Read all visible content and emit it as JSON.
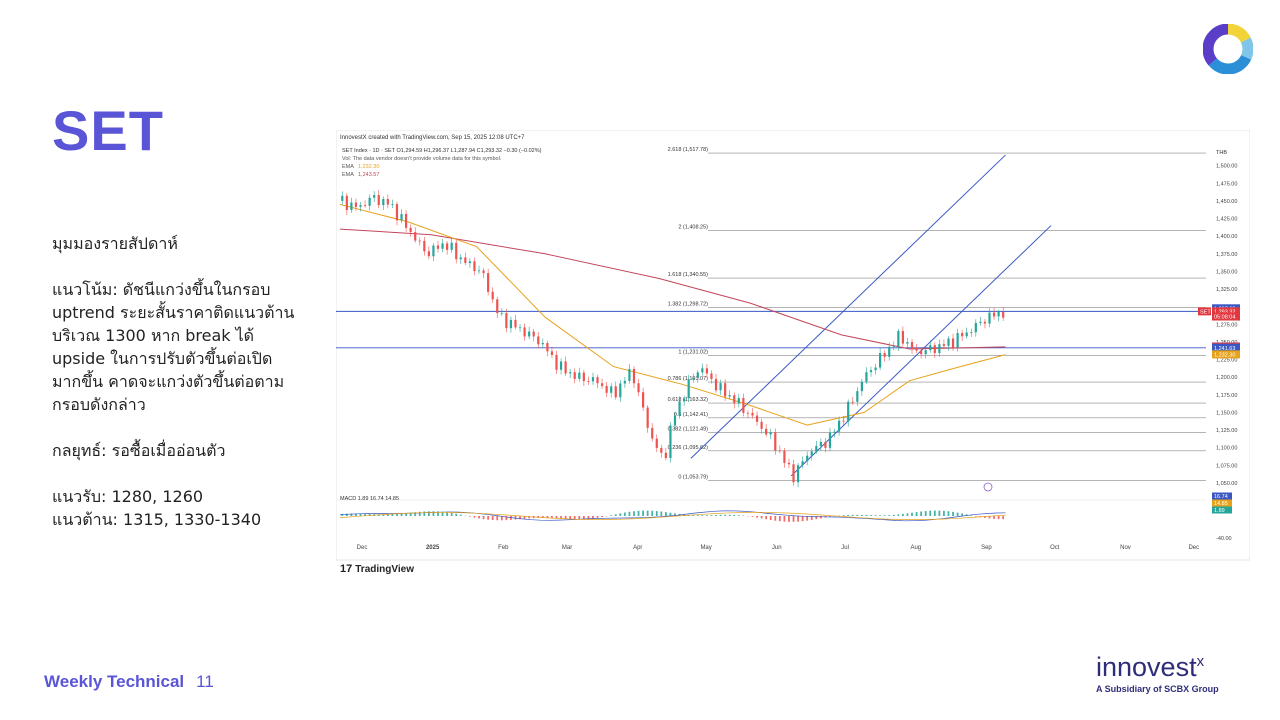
{
  "slide": {
    "title": "SET",
    "footer_label": "Weekly Technical",
    "page_number": "11"
  },
  "commentary": {
    "heading": "มุมมองรายสัปดาห์",
    "trend_lines": [
      "แนวโน้ม: ดัชนีแกว่งขึ้นในกรอบ",
      "uptrend ระยะสั้นราคาติดแนวต้าน",
      "บริเวณ 1300 หาก break ได้",
      "upside ในการปรับตัวขึ้นต่อเปิด",
      "มากขึ้น คาดจะแกว่งตัวขึ้นต่อตาม",
      "กรอบดังกล่าว"
    ],
    "strategy": "กลยุทธ์: รอซื้อเมื่ออ่อนตัว",
    "support": "แนวรับ: 1280, 1260",
    "resistance": "แนวต้าน: 1315, 1330-1340"
  },
  "brand": {
    "name": "innovest",
    "name_suffix": "x",
    "tagline": "A Subsidiary of SCBX Group",
    "tradingview": "TradingView",
    "tv_mark": "17",
    "primary": "#5a55d6",
    "navy": "#2f2d7a"
  },
  "chart_data": {
    "type": "candlestick",
    "header": "InnovestX created with TradingView.com, Sep 15, 2025 12:08 UTC+7",
    "symbol_line": "SET Index · 1D · SET  O1,294.59  H1,296.37  L1,287.94  C1,293.32  −0.30 (−0.02%)",
    "vol_line": "Vol: The data vendor doesn't provide volume data for this symbol.",
    "ema_lines": [
      {
        "label": "EMA",
        "value": "1,232.30",
        "color": "#e6a21a"
      },
      {
        "label": "EMA",
        "value": "1,243.57",
        "color": "#c2465a"
      }
    ],
    "currency": "THB",
    "ylim": [
      1040,
      1525
    ],
    "x_labels": [
      {
        "label": "Dec",
        "day": 0
      },
      {
        "label": "2025",
        "day": 31
      },
      {
        "label": "Feb",
        "day": 62
      },
      {
        "label": "Mar",
        "day": 90
      },
      {
        "label": "Apr",
        "day": 121
      },
      {
        "label": "May",
        "day": 151
      },
      {
        "label": "Jun",
        "day": 182
      },
      {
        "label": "Jul",
        "day": 212
      },
      {
        "label": "Aug",
        "day": 243
      },
      {
        "label": "Sep",
        "day": 274
      },
      {
        "label": "Oct",
        "day": 304
      },
      {
        "label": "Nov",
        "day": 335
      },
      {
        "label": "Dec",
        "day": 365
      }
    ],
    "y_ticks": [
      "1,500.00",
      "1,475.00",
      "1,450.00",
      "1,425.00",
      "1,400.00",
      "1,375.00",
      "1,350.00",
      "1,325.00",
      "1,275.00",
      "1,250.00",
      "1,225.00",
      "1,200.00",
      "1,175.00",
      "1,150.00",
      "1,125.00",
      "1,100.00",
      "1,075.00",
      "1,050.00"
    ],
    "y_tick_values": [
      1500,
      1475,
      1450,
      1425,
      1400,
      1375,
      1350,
      1325,
      1275,
      1250,
      1225,
      1200,
      1175,
      1150,
      1125,
      1100,
      1075,
      1050
    ],
    "fib_levels": [
      {
        "label": "2.618 (1,517.78)",
        "value": 1517.78
      },
      {
        "label": "2 (1,408.25)",
        "value": 1408.25
      },
      {
        "label": "1.618 (1,340.55)",
        "value": 1340.55
      },
      {
        "label": "1.382 (1,298.72)",
        "value": 1298.72
      },
      {
        "label": "1 (1,231.02)",
        "value": 1231.02
      },
      {
        "label": "0.786 (1,193.07)",
        "value": 1193.07
      },
      {
        "label": "0.618 (1,163.32)",
        "value": 1163.32
      },
      {
        "label": "0.5 (1,142.41)",
        "value": 1142.41
      },
      {
        "label": "0.382 (1,121.49)",
        "value": 1121.49
      },
      {
        "label": "0.236 (1,095.62)",
        "value": 1095.62
      },
      {
        "label": "0 (1,053.79)",
        "value": 1053.79
      }
    ],
    "horizontal_lines": [
      1293.32,
      1241.63
    ],
    "price_tags": [
      {
        "label": "1,297.68",
        "value": 1297.68,
        "color": "#3a57c4"
      },
      {
        "label": "1,293.32",
        "value": 1293.32,
        "color": "#e0383e"
      },
      {
        "label": "05:08:04",
        "value": 1286.0,
        "color": "#e0383e"
      },
      {
        "label": "1,243.57",
        "value": 1243.57,
        "color": "#c2465a"
      },
      {
        "label": "1,241.63",
        "value": 1241.63,
        "color": "#3a57c4"
      },
      {
        "label": "1,232.30",
        "value": 1232.3,
        "color": "#e6a21a"
      }
    ],
    "set_tag": "SET",
    "macd_label": "MACD  1.89  16.74  14.85",
    "macd_tags": [
      {
        "label": "16.74",
        "color": "#3a57c4"
      },
      {
        "label": "14.85",
        "color": "#e6a21a"
      },
      {
        "label": "1.89",
        "color": "#26a69a"
      }
    ],
    "macd_axis": "-40.00",
    "channel": {
      "upper": [
        {
          "day": 154,
          "value": 1085
        },
        {
          "day": 292,
          "value": 1515
        }
      ],
      "lower": [
        {
          "day": 198,
          "value": 1060
        },
        {
          "day": 312,
          "value": 1415
        }
      ]
    },
    "ema_fast": [
      {
        "day": 0,
        "value": 1445
      },
      {
        "day": 30,
        "value": 1420
      },
      {
        "day": 60,
        "value": 1385
      },
      {
        "day": 90,
        "value": 1285
      },
      {
        "day": 120,
        "value": 1215
      },
      {
        "day": 150,
        "value": 1190
      },
      {
        "day": 180,
        "value": 1160
      },
      {
        "day": 205,
        "value": 1132
      },
      {
        "day": 230,
        "value": 1150
      },
      {
        "day": 250,
        "value": 1195
      },
      {
        "day": 270,
        "value": 1213
      },
      {
        "day": 292,
        "value": 1232
      }
    ],
    "ema_slow": [
      {
        "day": 0,
        "value": 1410
      },
      {
        "day": 40,
        "value": 1402
      },
      {
        "day": 90,
        "value": 1375
      },
      {
        "day": 140,
        "value": 1340
      },
      {
        "day": 180,
        "value": 1305
      },
      {
        "day": 220,
        "value": 1260
      },
      {
        "day": 250,
        "value": 1240
      },
      {
        "day": 292,
        "value": 1243
      }
    ],
    "close_path": [
      {
        "day": 0,
        "value": 1450
      },
      {
        "day": 8,
        "value": 1440
      },
      {
        "day": 14,
        "value": 1455
      },
      {
        "day": 22,
        "value": 1445
      },
      {
        "day": 30,
        "value": 1410
      },
      {
        "day": 38,
        "value": 1375
      },
      {
        "day": 46,
        "value": 1390
      },
      {
        "day": 54,
        "value": 1365
      },
      {
        "day": 62,
        "value": 1350
      },
      {
        "day": 70,
        "value": 1285
      },
      {
        "day": 78,
        "value": 1270
      },
      {
        "day": 88,
        "value": 1250
      },
      {
        "day": 96,
        "value": 1215
      },
      {
        "day": 104,
        "value": 1200
      },
      {
        "day": 112,
        "value": 1195
      },
      {
        "day": 120,
        "value": 1175
      },
      {
        "day": 128,
        "value": 1210
      },
      {
        "day": 136,
        "value": 1120
      },
      {
        "day": 142,
        "value": 1080
      },
      {
        "day": 146,
        "value": 1140
      },
      {
        "day": 152,
        "value": 1185
      },
      {
        "day": 158,
        "value": 1215
      },
      {
        "day": 166,
        "value": 1185
      },
      {
        "day": 174,
        "value": 1165
      },
      {
        "day": 182,
        "value": 1140
      },
      {
        "day": 190,
        "value": 1110
      },
      {
        "day": 196,
        "value": 1075
      },
      {
        "day": 199,
        "value": 1060
      },
      {
        "day": 206,
        "value": 1095
      },
      {
        "day": 214,
        "value": 1110
      },
      {
        "day": 222,
        "value": 1150
      },
      {
        "day": 230,
        "value": 1200
      },
      {
        "day": 238,
        "value": 1230
      },
      {
        "day": 246,
        "value": 1260
      },
      {
        "day": 252,
        "value": 1235
      },
      {
        "day": 260,
        "value": 1240
      },
      {
        "day": 268,
        "value": 1250
      },
      {
        "day": 276,
        "value": 1265
      },
      {
        "day": 284,
        "value": 1285
      },
      {
        "day": 292,
        "value": 1293
      }
    ]
  }
}
